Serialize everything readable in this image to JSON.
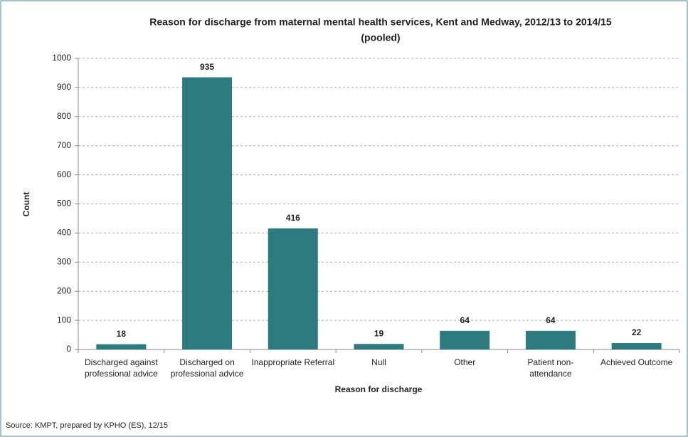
{
  "chart_data": {
    "type": "bar",
    "title": [
      "Reason for discharge from maternal mental health services, Kent and Medway, 2012/13 to 2014/15",
      "(pooled)"
    ],
    "x_label": "Reason for discharge",
    "y_label": "Count",
    "categories": [
      "Discharged against professional advice",
      "Discharged on professional advice",
      "Inappropriate Referral",
      "Null",
      "Other",
      "Patient non-attendance",
      "Achieved Outcome"
    ],
    "values": [
      18,
      935,
      416,
      19,
      64,
      64,
      22
    ],
    "color": "#2e7b7f",
    "ylim": [
      0,
      1000
    ],
    "yticks": [
      0,
      100,
      200,
      300,
      400,
      500,
      600,
      700,
      800,
      900,
      1000
    ],
    "grid": true,
    "source": "Source: KMPT, prepared by KPHO (ES), 12/15"
  }
}
